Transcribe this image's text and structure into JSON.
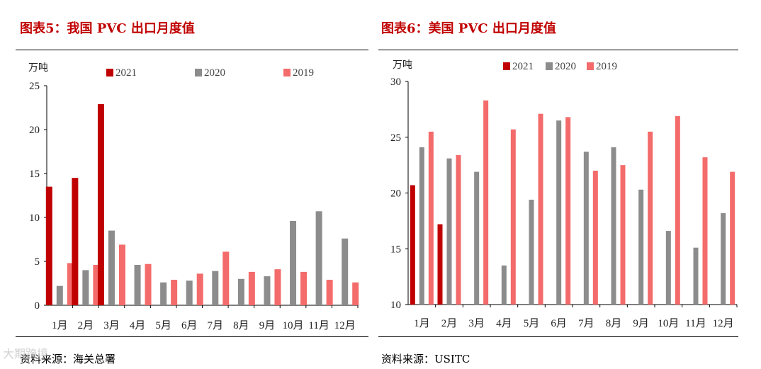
{
  "figures": [
    {
      "title": "图表5：我国 PVC 出口月度值",
      "source": "资料来源：海关总署"
    },
    {
      "title": "图表6：美国 PVC 出口月度值",
      "source": "资料来源：USITC"
    }
  ],
  "watermark": "大期跨境",
  "chart_data": [
    {
      "type": "bar",
      "unit_label": "万吨",
      "categories": [
        "1月",
        "2月",
        "3月",
        "4月",
        "5月",
        "6月",
        "7月",
        "8月",
        "9月",
        "10月",
        "11月",
        "12月"
      ],
      "ylim": [
        0,
        25
      ],
      "yticks": [
        0,
        5,
        10,
        15,
        20,
        25
      ],
      "legend_position": "top",
      "series": [
        {
          "name": "2021",
          "color": "#c00000",
          "values": [
            13.5,
            14.5,
            22.9,
            null,
            null,
            null,
            null,
            null,
            null,
            null,
            null,
            null
          ]
        },
        {
          "name": "2020",
          "color": "#8c8c8c",
          "values": [
            2.2,
            4.0,
            8.5,
            4.6,
            2.6,
            2.8,
            3.9,
            3.0,
            3.3,
            9.6,
            10.7,
            7.6
          ]
        },
        {
          "name": "2019",
          "color": "#f46b6b",
          "values": [
            4.8,
            4.6,
            6.9,
            4.7,
            2.9,
            3.6,
            6.1,
            3.8,
            4.1,
            3.8,
            2.9,
            2.6
          ]
        }
      ]
    },
    {
      "type": "bar",
      "unit_label": "万吨",
      "categories": [
        "1月",
        "2月",
        "3月",
        "4月",
        "5月",
        "6月",
        "7月",
        "8月",
        "9月",
        "10月",
        "11月",
        "12月"
      ],
      "ylim": [
        10,
        30
      ],
      "yticks": [
        10,
        15,
        20,
        25,
        30
      ],
      "legend_position": "top",
      "series": [
        {
          "name": "2021",
          "color": "#c00000",
          "values": [
            20.7,
            17.2,
            null,
            null,
            null,
            null,
            null,
            null,
            null,
            null,
            null,
            null
          ]
        },
        {
          "name": "2020",
          "color": "#8c8c8c",
          "values": [
            24.1,
            23.1,
            21.9,
            13.5,
            19.4,
            26.5,
            23.7,
            24.1,
            20.3,
            16.6,
            15.1,
            18.2
          ]
        },
        {
          "name": "2019",
          "color": "#f46b6b",
          "values": [
            25.5,
            23.4,
            28.3,
            25.7,
            27.1,
            26.8,
            22.0,
            22.5,
            25.5,
            26.9,
            23.2,
            21.9
          ]
        }
      ]
    }
  ]
}
